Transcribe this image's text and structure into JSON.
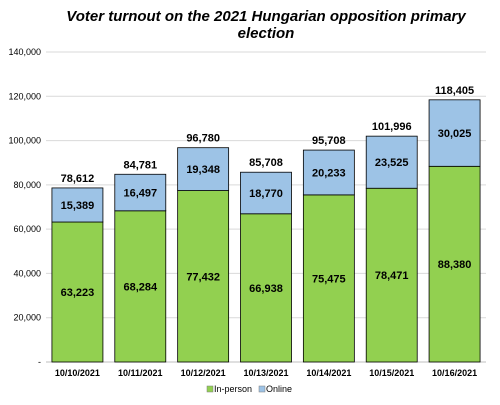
{
  "chart_data": {
    "type": "bar",
    "stacked": true,
    "title": "Voter turnout on the 2021 Hungarian opposition primary election",
    "title_lines": [
      "Voter turnout on the 2021 Hungarian opposition primary",
      "election"
    ],
    "categories": [
      "10/10/2021",
      "10/11/2021",
      "10/12/2021",
      "10/13/2021",
      "10/14/2021",
      "10/15/2021",
      "10/16/2021"
    ],
    "series": [
      {
        "name": "In-person",
        "color": "#92D050",
        "values": [
          63223,
          68284,
          77432,
          66938,
          75475,
          78471,
          88380
        ],
        "labels": [
          "63,223",
          "68,284",
          "77,432",
          "66,938",
          "75,475",
          "78,471",
          "88,380"
        ]
      },
      {
        "name": "Online",
        "color": "#9DC3E6",
        "values": [
          15389,
          16497,
          19348,
          18770,
          20233,
          23525,
          30025
        ],
        "labels": [
          "15,389",
          "16,497",
          "19,348",
          "18,770",
          "20,233",
          "23,525",
          "30,025"
        ]
      }
    ],
    "totals": [
      78612,
      84781,
      96780,
      85708,
      95708,
      101996,
      118405
    ],
    "total_labels": [
      "78,612",
      "84,781",
      "96,780",
      "85,708",
      "95,708",
      "101,996",
      "118,405"
    ],
    "ylim": [
      0,
      140000
    ],
    "yticks": [
      0,
      20000,
      40000,
      60000,
      80000,
      100000,
      120000,
      140000
    ],
    "ytick_labels": [
      "-",
      "20,000",
      "40,000",
      "60,000",
      "80,000",
      "100,000",
      "120,000",
      "140,000"
    ],
    "grid": true,
    "legend_position": "bottom",
    "legend": [
      "In-person",
      "Online"
    ]
  }
}
